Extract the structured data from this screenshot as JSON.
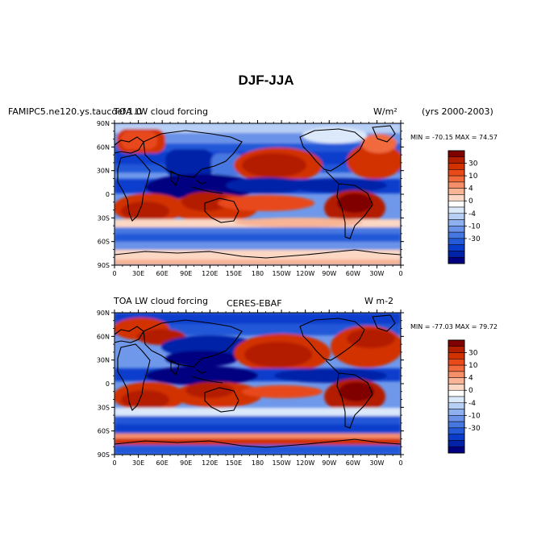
{
  "title": "DJF-JJA",
  "panels": [
    {
      "left_label": "FAMIPC5.ne120.ys.taucoef.1.0",
      "center_label": "TOA LW cloud forcing",
      "units": "W/m²",
      "years": "(yrs 2000-2003)",
      "stats": "MIN = -70.15  MAX =  74.57"
    },
    {
      "left_label": "TOA LW cloud forcing",
      "center_label": "CERES-EBAF",
      "units": "W m-2",
      "years": "",
      "stats": "MIN = -77.03  MAX =  79.72"
    }
  ],
  "lat_labels": [
    "90N",
    "60N",
    "30N",
    "0",
    "30S",
    "60S",
    "90S"
  ],
  "lon_labels": [
    "0",
    "30E",
    "60E",
    "90E",
    "120E",
    "150E",
    "180",
    "150W",
    "120W",
    "90W",
    "60W",
    "30W",
    "0"
  ],
  "colorbar": {
    "labels": [
      "30",
      "10",
      "4",
      "0",
      "-4",
      "-10",
      "-30"
    ],
    "colors": [
      "#800000",
      "#b41e00",
      "#d23200",
      "#e84a1a",
      "#f06a3c",
      "#f48f6a",
      "#f8b495",
      "#fcd8c4",
      "#ffffff",
      "#dce9fb",
      "#b7cef5",
      "#8fb0ef",
      "#6a92e8",
      "#4677e0",
      "#2459d8",
      "#0a3ccc",
      "#0022a8",
      "#000080"
    ]
  }
}
